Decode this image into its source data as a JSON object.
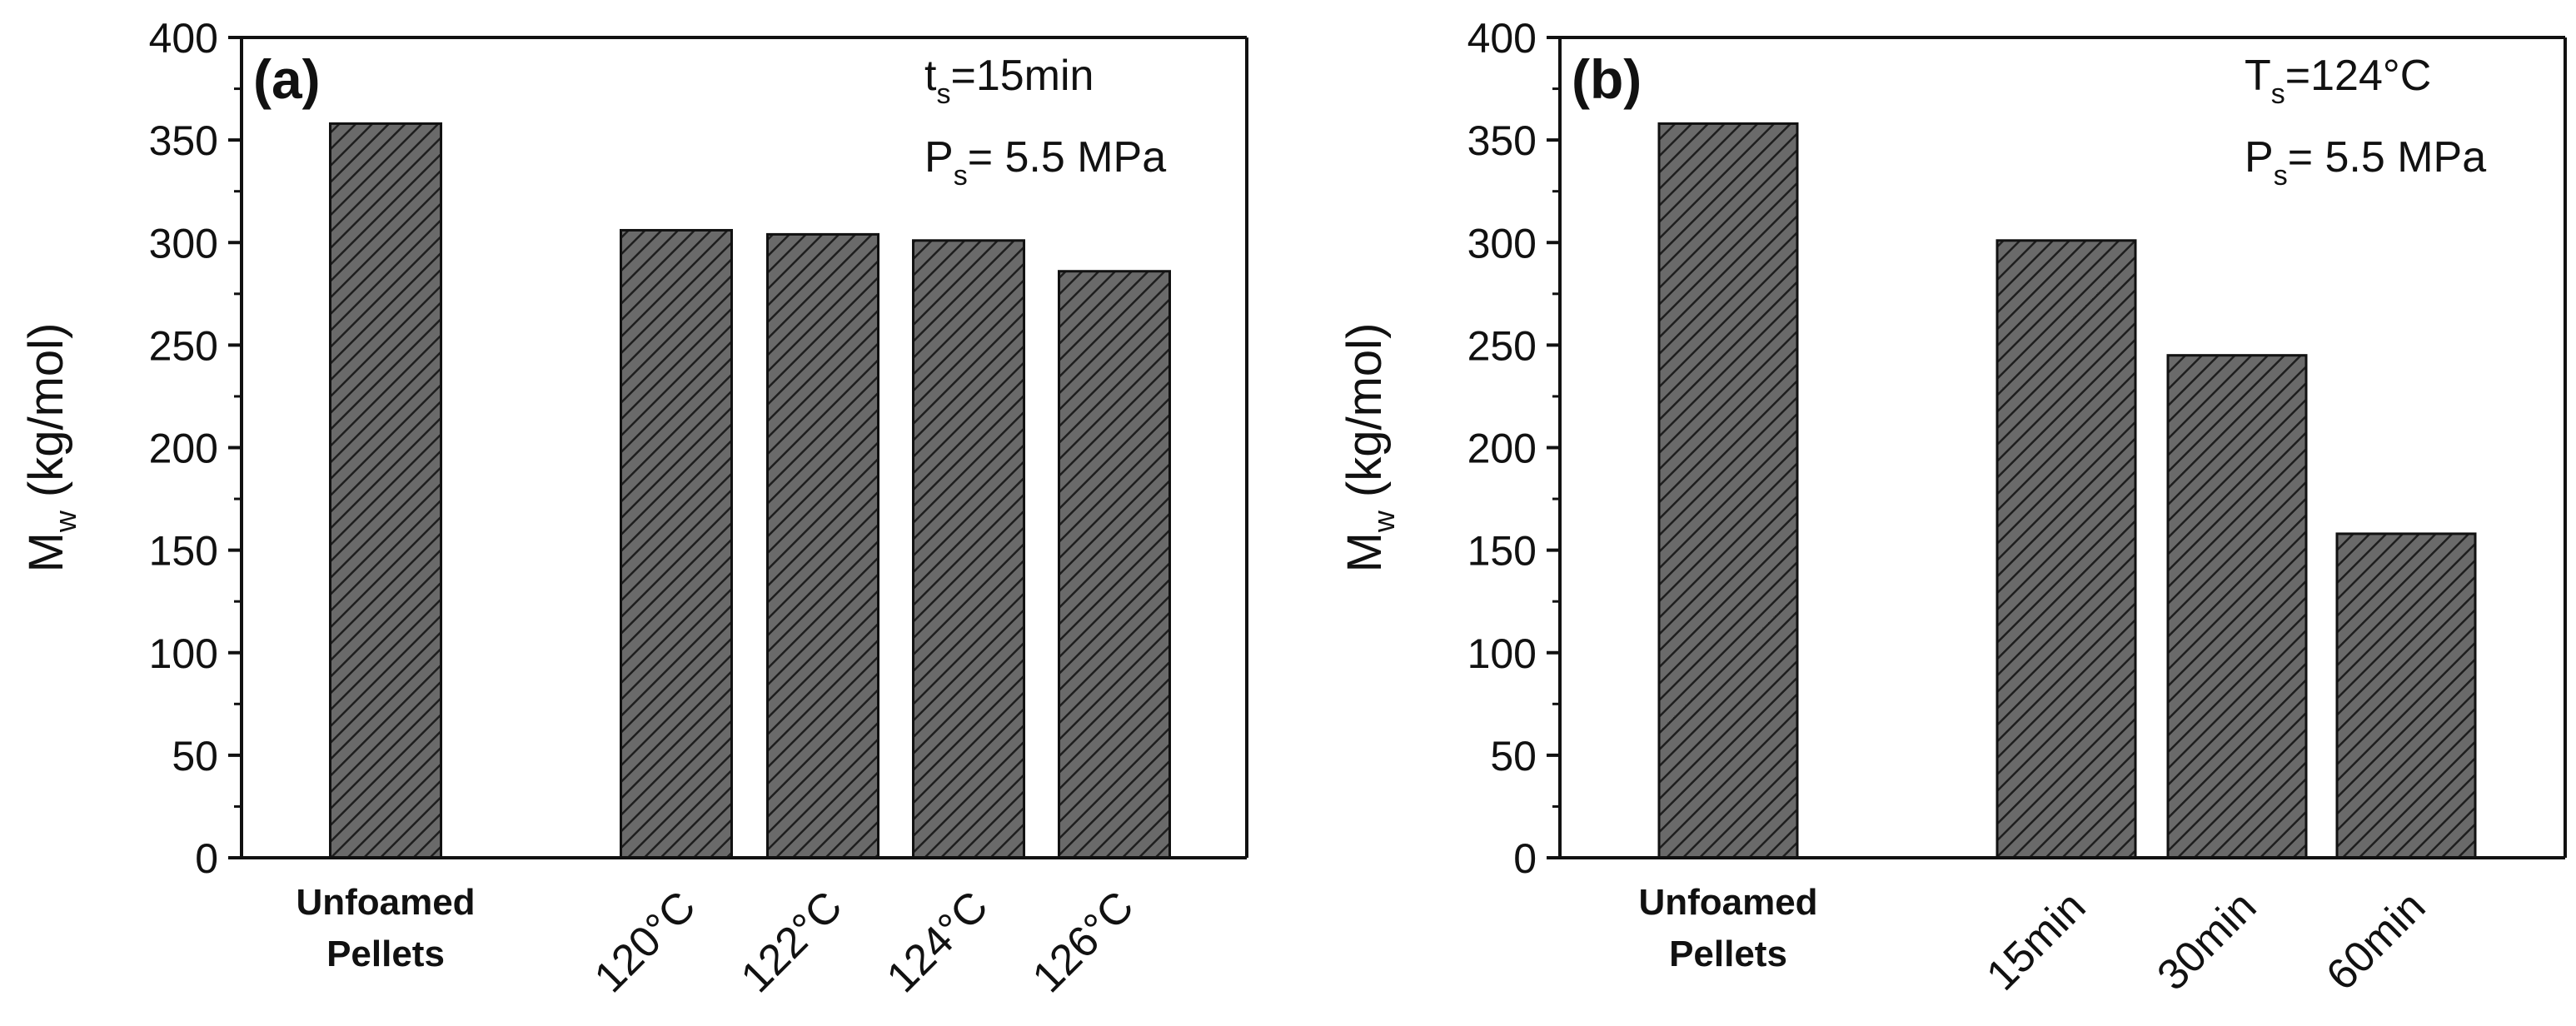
{
  "colors": {
    "bar_fill": "#6a6a6a",
    "hatch": "#1e1e1e",
    "axis": "#111111"
  },
  "chart_data": [
    {
      "type": "bar",
      "panel_label": "(a)",
      "ylabel_main": "M",
      "ylabel_sub": "w",
      "ylabel_unit": "(kg/mol)",
      "ylim": [
        0,
        400
      ],
      "yticks": [
        "0",
        "50",
        "100",
        "150",
        "200",
        "250",
        "300",
        "350",
        "400"
      ],
      "categories": [
        {
          "label": [
            "Unfoamed",
            "Pellets"
          ],
          "style": "bold",
          "value": 358
        },
        {
          "label": "120°C",
          "style": "rotated",
          "value": 306
        },
        {
          "label": "122°C",
          "style": "rotated",
          "value": 304
        },
        {
          "label": "124°C",
          "style": "rotated",
          "value": 301
        },
        {
          "label": "126°C",
          "style": "rotated",
          "value": 286
        }
      ],
      "annotations": {
        "line1": {
          "main": "t",
          "sub": "s",
          "rest": "=15min"
        },
        "line2": {
          "main": "P",
          "sub": "s",
          "rest": "= 5.5 MPa"
        }
      }
    },
    {
      "type": "bar",
      "panel_label": "(b)",
      "ylabel_main": "M",
      "ylabel_sub": "w",
      "ylabel_unit": "(kg/mol)",
      "ylim": [
        0,
        400
      ],
      "yticks": [
        "0",
        "50",
        "100",
        "150",
        "200",
        "250",
        "300",
        "350",
        "400"
      ],
      "categories": [
        {
          "label": [
            "Unfoamed",
            "Pellets"
          ],
          "style": "bold",
          "value": 358
        },
        {
          "label": "15min",
          "style": "rotated",
          "value": 301
        },
        {
          "label": "30min",
          "style": "rotated",
          "value": 245
        },
        {
          "label": "60min",
          "style": "rotated",
          "value": 158
        }
      ],
      "annotations": {
        "line1": {
          "main": "T",
          "sub": "s",
          "rest": "=124°C"
        },
        "line2": {
          "main": "P",
          "sub": "s",
          "rest": "= 5.5 MPa"
        }
      }
    }
  ]
}
